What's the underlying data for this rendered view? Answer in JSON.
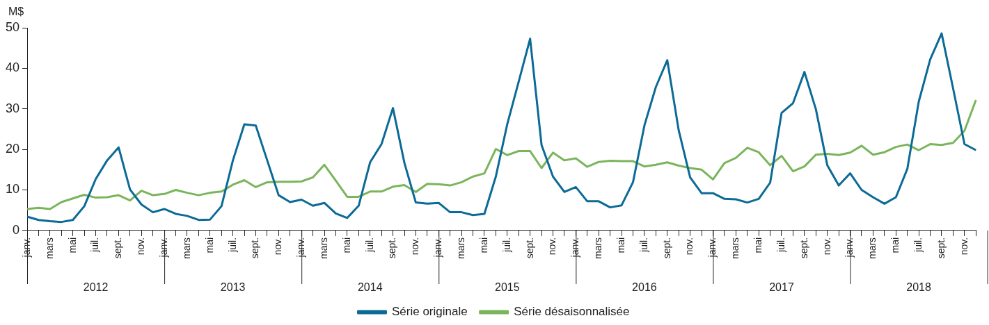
{
  "chart_data": {
    "type": "line",
    "ylabel": "M$",
    "categories": [
      "janv.",
      null,
      "mars",
      null,
      "mai",
      null,
      "juil.",
      null,
      "sept.",
      null,
      "nov.",
      null,
      "janv.",
      null,
      "mars",
      null,
      "mai",
      null,
      "juil.",
      null,
      "sept.",
      null,
      "nov.",
      null,
      "janv.",
      null,
      "mars",
      null,
      "mai",
      null,
      "juil.",
      null,
      "sept.",
      null,
      "nov.",
      null,
      "janv.",
      null,
      "mars",
      null,
      "mai",
      null,
      "juil.",
      null,
      "sept.",
      null,
      "nov.",
      null,
      "janv.",
      null,
      "mars",
      null,
      "mai",
      null,
      "juil.",
      null,
      "sept.",
      null,
      "nov.",
      null,
      "janv.",
      null,
      "mars",
      null,
      "mai",
      null,
      "juil.",
      null,
      "sept.",
      null,
      "nov.",
      null,
      "janv.",
      null,
      "mars",
      null,
      "mai",
      null,
      "juil.",
      null,
      "sept.",
      null,
      "nov.",
      null
    ],
    "annotations": [
      "2012",
      "2013",
      "2014",
      "2015",
      "2016",
      "2017",
      "2018"
    ],
    "series": [
      {
        "name": "Série originale",
        "color": "#0b6a96",
        "values": [
          3.4,
          2.6,
          2.3,
          2.1,
          2.6,
          6.0,
          12.7,
          17.3,
          20.5,
          10.1,
          6.4,
          4.5,
          5.3,
          4.1,
          3.6,
          2.6,
          2.7,
          6.0,
          17.3,
          26.2,
          25.9,
          17.3,
          8.7,
          7.0,
          7.6,
          6.1,
          6.8,
          4.2,
          3.1,
          6.1,
          16.8,
          21.3,
          30.2,
          16.7,
          6.9,
          6.6,
          6.8,
          4.5,
          4.5,
          3.8,
          4.1,
          13.3,
          26.2,
          36.7,
          47.3,
          21.1,
          13.3,
          9.5,
          10.7,
          7.2,
          7.2,
          5.7,
          6.2,
          11.9,
          25.9,
          35.4,
          42.0,
          24.7,
          13.1,
          9.2,
          9.2,
          7.8,
          7.7,
          6.9,
          7.8,
          11.8,
          29.0,
          31.4,
          39.1,
          29.9,
          16.1,
          11.1,
          14.1,
          10.0,
          8.2,
          6.6,
          8.2,
          15.2,
          31.8,
          42.2,
          48.6,
          35.1,
          21.3,
          19.8
        ]
      },
      {
        "name": "Série désaisonnalisée",
        "color": "#7ab55c",
        "values": [
          5.3,
          5.6,
          5.3,
          7.0,
          7.9,
          8.8,
          8.1,
          8.2,
          8.7,
          7.4,
          9.8,
          8.7,
          9.0,
          10.0,
          9.3,
          8.7,
          9.3,
          9.6,
          11.3,
          12.4,
          10.7,
          11.9,
          12.0,
          12.0,
          12.1,
          13.1,
          16.2,
          12.3,
          8.3,
          8.3,
          9.6,
          9.6,
          10.8,
          11.2,
          9.5,
          11.5,
          11.4,
          11.1,
          11.9,
          13.3,
          14.1,
          20.1,
          18.6,
          19.6,
          19.6,
          15.4,
          19.2,
          17.3,
          17.8,
          15.7,
          16.9,
          17.2,
          17.1,
          17.1,
          15.8,
          16.2,
          16.8,
          16.0,
          15.4,
          15.0,
          12.6,
          16.6,
          17.9,
          20.4,
          19.3,
          16.1,
          18.4,
          14.6,
          15.8,
          18.7,
          18.9,
          18.6,
          19.2,
          20.9,
          18.7,
          19.3,
          20.6,
          21.2,
          19.8,
          21.3,
          21.1,
          21.6,
          24.6,
          32.2
        ]
      }
    ],
    "ylim": [
      0,
      50
    ],
    "yticks": [
      0,
      10,
      20,
      30,
      40,
      50
    ],
    "grid": false,
    "legend": "bottom",
    "marker": "none",
    "line_style": "solid"
  }
}
